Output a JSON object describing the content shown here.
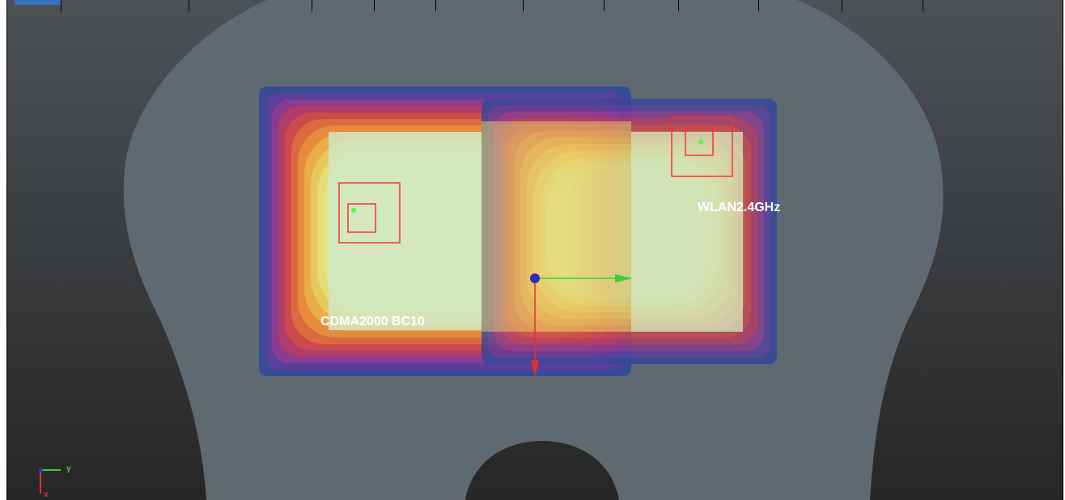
{
  "labels": {
    "left_band": "CDMA2000 BC10",
    "right_band": "WLAN2.4GHz"
  },
  "axis_triad": {
    "y": "y",
    "x": "x"
  }
}
